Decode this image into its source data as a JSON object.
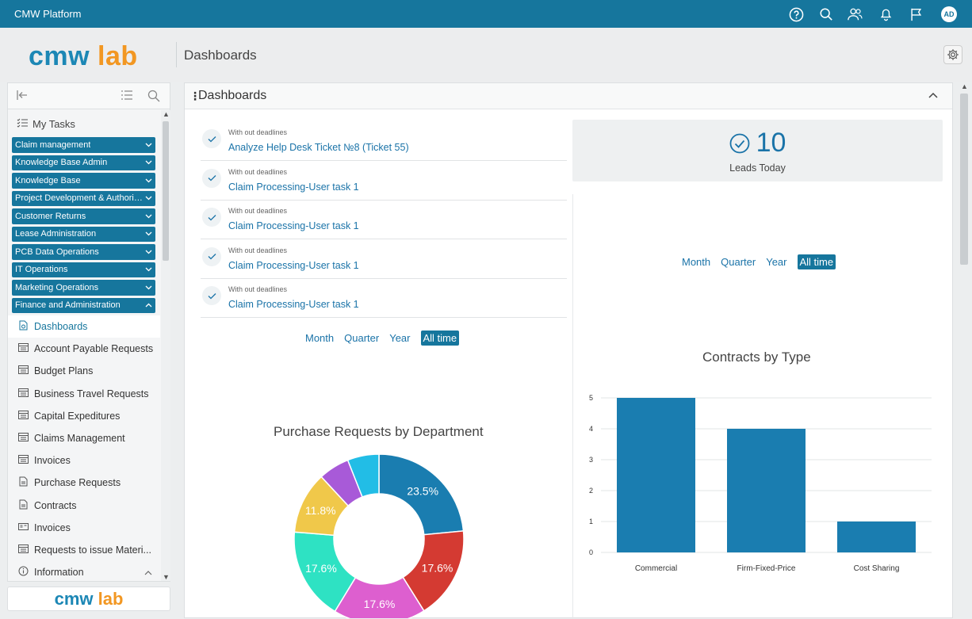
{
  "app": {
    "title": "CMW Platform",
    "avatar": "AD"
  },
  "header": {
    "logo_cmw": "cmw",
    "logo_lab": "lab",
    "page_title": "Dashboards"
  },
  "sidebar": {
    "my_tasks": "My Tasks",
    "groups": [
      {
        "label": "Claim management",
        "chevron": "down"
      },
      {
        "label": "Knowledge Base Admin",
        "chevron": "down"
      },
      {
        "label": "Knowledge Base",
        "chevron": "down"
      },
      {
        "label": "Project Development & Authoriz...",
        "chevron": "down"
      },
      {
        "label": "Customer Returns",
        "chevron": "down"
      },
      {
        "label": "Lease Administration",
        "chevron": "down"
      },
      {
        "label": "PCB Data Operations",
        "chevron": "down"
      },
      {
        "label": "IT Operations",
        "chevron": "down"
      },
      {
        "label": "Marketing Operations",
        "chevron": "down"
      },
      {
        "label": "Finance and Administration",
        "chevron": "up"
      }
    ],
    "items": [
      {
        "label": "Dashboards",
        "icon": "dashboard-icon"
      },
      {
        "label": "Account Payable Requests",
        "icon": "table-icon"
      },
      {
        "label": "Budget Plans",
        "icon": "table-icon"
      },
      {
        "label": "Business Travel Requests",
        "icon": "table-icon"
      },
      {
        "label": "Capital Expeditures",
        "icon": "table-icon"
      },
      {
        "label": "Claims Management",
        "icon": "table-icon"
      },
      {
        "label": "Invoices",
        "icon": "table-icon"
      },
      {
        "label": "Purchase Requests",
        "icon": "document-icon"
      },
      {
        "label": "Contracts",
        "icon": "document-icon"
      },
      {
        "label": "Invoices",
        "icon": "card-icon"
      },
      {
        "label": "Requests to issue Materi...",
        "icon": "table-icon"
      },
      {
        "label": "Information",
        "icon": "info-icon"
      }
    ],
    "footer_logo_cmw": "cmw",
    "footer_logo_lab": "lab"
  },
  "main": {
    "title": "Dashboards",
    "tasks": [
      {
        "deadline": "With out deadlines",
        "name": "Analyze Help Desk Ticket №8 (Ticket 55)"
      },
      {
        "deadline": "With out deadlines",
        "name": "Claim Processing-User task 1"
      },
      {
        "deadline": "With out deadlines",
        "name": "Claim Processing-User task 1"
      },
      {
        "deadline": "With out deadlines",
        "name": "Claim Processing-User task 1"
      },
      {
        "deadline": "With out deadlines",
        "name": "Claim Processing-User task 1"
      }
    ],
    "period_filter_left": [
      "Month",
      "Quarter",
      "Year",
      "All time"
    ],
    "period_filter_right": [
      "Month",
      "Quarter",
      "Year",
      "All time"
    ],
    "selected_period": "All time",
    "kpi": {
      "value": "10",
      "label": "Leads Today"
    }
  },
  "colors": {
    "brand": "#16769d",
    "logo_blue": "#1c87b5",
    "logo_orange": "#f29722",
    "link": "#1a73a8",
    "bar": "#1a7db0"
  },
  "chart_data": [
    {
      "type": "pie",
      "title": "Purchase Requests by Department",
      "donut": true,
      "slices": [
        {
          "value": 23.5,
          "label": "23.5%",
          "color": "#1a7db0"
        },
        {
          "value": 17.6,
          "label": "17.6%",
          "color": "#d43a32"
        },
        {
          "value": 17.6,
          "label": "17.6%",
          "color": "#dd5fcf"
        },
        {
          "value": 17.6,
          "label": "17.6%",
          "color": "#2ee2c3"
        },
        {
          "value": 11.8,
          "label": "11.8%",
          "color": "#f0c84a"
        },
        {
          "value": 5.9,
          "label": "",
          "color": "#a85ad8"
        },
        {
          "value": 6.0,
          "label": "",
          "color": "#22bde6"
        }
      ]
    },
    {
      "type": "bar",
      "title": "Contracts by Type",
      "categories": [
        "Commercial",
        "Firm-Fixed-Price",
        "Cost Sharing"
      ],
      "values": [
        5,
        4,
        1
      ],
      "ylim": [
        0,
        5
      ],
      "yticks": [
        "0",
        "1",
        "2",
        "3",
        "4",
        "5"
      ],
      "grid": true
    }
  ]
}
